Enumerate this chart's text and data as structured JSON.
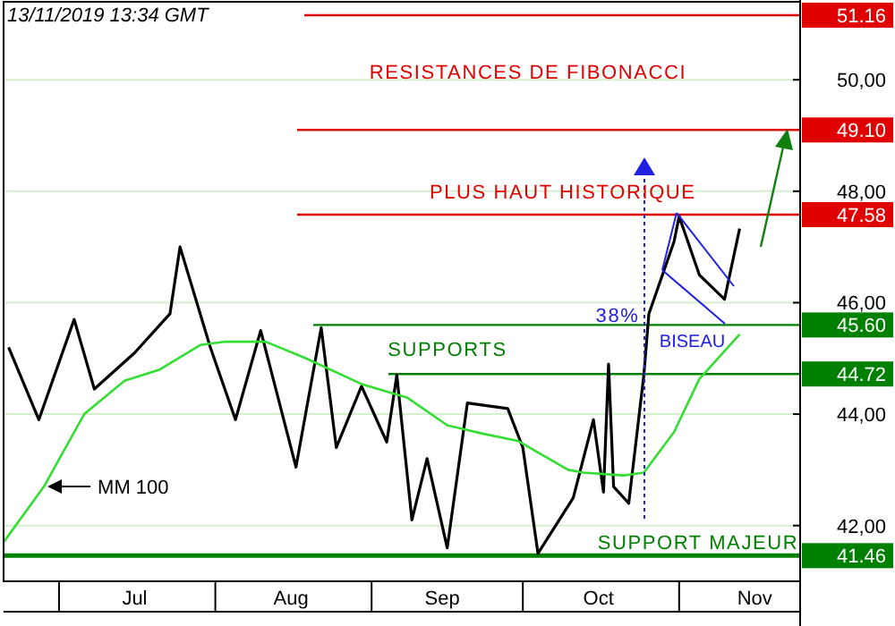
{
  "chart_data": {
    "type": "line",
    "xlim": [
      "2019-06-20",
      "2019-11-25"
    ],
    "xticks": [
      {
        "value": "2019-07-01",
        "label": null
      },
      {
        "value": "2019-07-16",
        "label": "Jul"
      },
      {
        "value": "2019-08-01",
        "label": null
      },
      {
        "value": "2019-08-16",
        "label": "Aug"
      },
      {
        "value": "2019-09-01",
        "label": null
      },
      {
        "value": "2019-09-15",
        "label": "Sep"
      },
      {
        "value": "2019-10-01",
        "label": null
      },
      {
        "value": "2019-10-16",
        "label": "Oct"
      },
      {
        "value": "2019-11-01",
        "label": null
      },
      {
        "value": "2019-11-16",
        "label": "Nov"
      }
    ],
    "ylim": [
      41.0,
      51.4
    ],
    "yticks": [
      {
        "value": 42,
        "label": "42,00"
      },
      {
        "value": 44,
        "label": "44,00"
      },
      {
        "value": 46,
        "label": "46,00"
      },
      {
        "value": 48,
        "label": "48,00"
      },
      {
        "value": 50,
        "label": "50,00"
      }
    ],
    "grid": "y",
    "series": [
      {
        "color": "#000000",
        "x": [
          "2019-06-21",
          "2019-06-27",
          "2019-07-04",
          "2019-07-08",
          "2019-07-16",
          "2019-07-23",
          "2019-07-25",
          "2019-07-31",
          "2019-08-05",
          "2019-08-10",
          "2019-08-17",
          "2019-08-22",
          "2019-08-25",
          "2019-08-30",
          "2019-09-04",
          "2019-09-06",
          "2019-09-09",
          "2019-09-12",
          "2019-09-16",
          "2019-09-20",
          "2019-09-28",
          "2019-10-01",
          "2019-10-04",
          "2019-10-11",
          "2019-10-15",
          "2019-10-17",
          "2019-10-18",
          "2019-10-19",
          "2019-10-22",
          "2019-10-25",
          "2019-10-26",
          "2019-10-31",
          "2019-11-01",
          "2019-11-05",
          "2019-11-10",
          "2019-11-13"
        ],
        "values": [
          45.2,
          43.9,
          45.7,
          44.45,
          45.1,
          45.8,
          47.0,
          45.2,
          43.9,
          45.5,
          43.05,
          45.55,
          43.4,
          44.5,
          43.5,
          44.7,
          42.1,
          43.2,
          41.6,
          44.2,
          44.1,
          43.4,
          41.5,
          42.5,
          43.9,
          42.6,
          44.9,
          42.7,
          42.4,
          44.7,
          45.8,
          47.1,
          47.55,
          46.5,
          46.06,
          47.33
        ]
      },
      {
        "name": "MM 100",
        "color": "#33dd33",
        "x": [
          "2019-06-20",
          "2019-06-28",
          "2019-07-06",
          "2019-07-14",
          "2019-07-21",
          "2019-07-29",
          "2019-08-03",
          "2019-08-11",
          "2019-08-19",
          "2019-08-30",
          "2019-09-08",
          "2019-09-16",
          "2019-09-23",
          "2019-09-30",
          "2019-10-10",
          "2019-10-13",
          "2019-10-21",
          "2019-10-25",
          "2019-10-31",
          "2019-11-05",
          "2019-11-13"
        ],
        "values": [
          41.7,
          42.7,
          44.0,
          44.6,
          44.8,
          45.24,
          45.3,
          45.3,
          45.0,
          44.54,
          44.3,
          43.8,
          43.65,
          43.52,
          43.0,
          42.95,
          42.9,
          42.95,
          43.68,
          44.63,
          45.43
        ]
      }
    ],
    "ref_lines": [
      {
        "axis": "y",
        "value": 51.16,
        "label": "51.16",
        "color": "#e00000"
      },
      {
        "axis": "y",
        "value": 49.1,
        "label": "49.10",
        "color": "#e00000"
      },
      {
        "axis": "y",
        "value": 47.58,
        "label": "47.58",
        "color": "#e00000"
      },
      {
        "axis": "y",
        "value": 45.6,
        "label": "45.60",
        "color": "#008000"
      },
      {
        "axis": "y",
        "value": 44.72,
        "label": "44.72",
        "color": "#008000"
      },
      {
        "axis": "y",
        "value": 41.46,
        "label": "41.46",
        "color": "#008000"
      }
    ],
    "annotations": [
      "13/11/2019  13:34 GMT",
      "RESISTANCES DE FIBONACCI",
      {
        "text": "PLUS HAUT HISTORIQUE",
        "x": "2019-11-01",
        "y": 47.55
      },
      "SUPPORTS",
      "SUPPORT MAJEUR",
      {
        "text": "BISEAU",
        "x": "2019-11-10",
        "y": 45.62
      },
      "38%"
    ]
  }
}
